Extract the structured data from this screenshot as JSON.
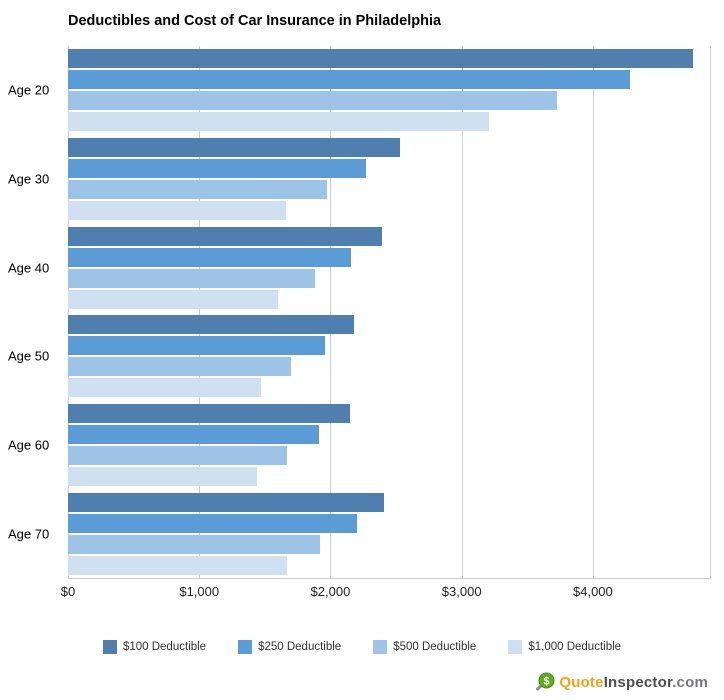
{
  "title": "Deductibles and Cost of Car Insurance in Philadelphia",
  "chart_data": {
    "type": "bar",
    "orientation": "horizontal",
    "title": "Deductibles and Cost of Car Insurance in Philadelphia",
    "xlabel": "",
    "ylabel": "",
    "xlim": [
      0,
      4900
    ],
    "grid": "vertical",
    "legend_position": "bottom",
    "categories": [
      "Age 20",
      "Age 30",
      "Age 40",
      "Age 50",
      "Age 60",
      "Age 70"
    ],
    "xticks": [
      {
        "value": 0,
        "label": "$0"
      },
      {
        "value": 1000,
        "label": "$1,000"
      },
      {
        "value": 2000,
        "label": "$2,000"
      },
      {
        "value": 3000,
        "label": "$3,000"
      },
      {
        "value": 4000,
        "label": "$4,000"
      }
    ],
    "series": [
      {
        "name": "$100 Deductible",
        "color": "#4e7fae",
        "values": [
          4760,
          2530,
          2390,
          2180,
          2150,
          2410
        ]
      },
      {
        "name": "$250 Deductible",
        "color": "#5b9cd6",
        "values": [
          4280,
          2270,
          2160,
          1960,
          1910,
          2200
        ]
      },
      {
        "name": "$500 Deductible",
        "color": "#9dc3e6",
        "values": [
          3730,
          1970,
          1880,
          1700,
          1670,
          1920
        ]
      },
      {
        "name": "$1,000 Deductible",
        "color": "#cfe0f1",
        "values": [
          3210,
          1660,
          1600,
          1470,
          1440,
          1670
        ]
      }
    ]
  },
  "logo": {
    "icon": "magnifier-dollar-icon",
    "icon_color": "#62aa1e",
    "dollar": "$",
    "quote": "Quote",
    "quote_color": "#f6a01a",
    "inspector": "Inspector",
    "inspector_color": "#4d4d4f",
    "domain": ".com",
    "domain_color": "#77787b"
  }
}
